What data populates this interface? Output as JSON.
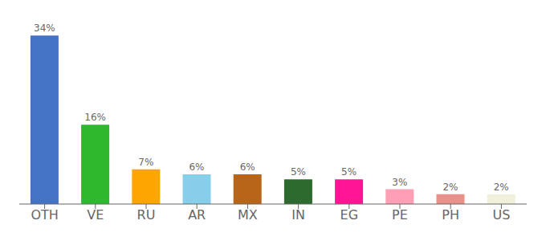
{
  "chart_data": {
    "type": "bar",
    "categories": [
      "OTH",
      "VE",
      "RU",
      "AR",
      "MX",
      "IN",
      "EG",
      "PE",
      "PH",
      "US"
    ],
    "values": [
      34,
      16,
      7,
      6,
      6,
      5,
      5,
      3,
      2,
      2
    ],
    "value_labels": [
      "34%",
      "16%",
      "7%",
      "6%",
      "6%",
      "5%",
      "5%",
      "3%",
      "2%",
      "2%"
    ],
    "colors": [
      "#4472c4",
      "#2db82d",
      "#ffa500",
      "#87ceeb",
      "#b8651a",
      "#2d6a2d",
      "#ff1493",
      "#ff9eb5",
      "#e8908a",
      "#f0f0dc"
    ],
    "ylim": [
      0,
      36
    ],
    "data_labels": true,
    "tick_labels": "x",
    "grid": false
  }
}
